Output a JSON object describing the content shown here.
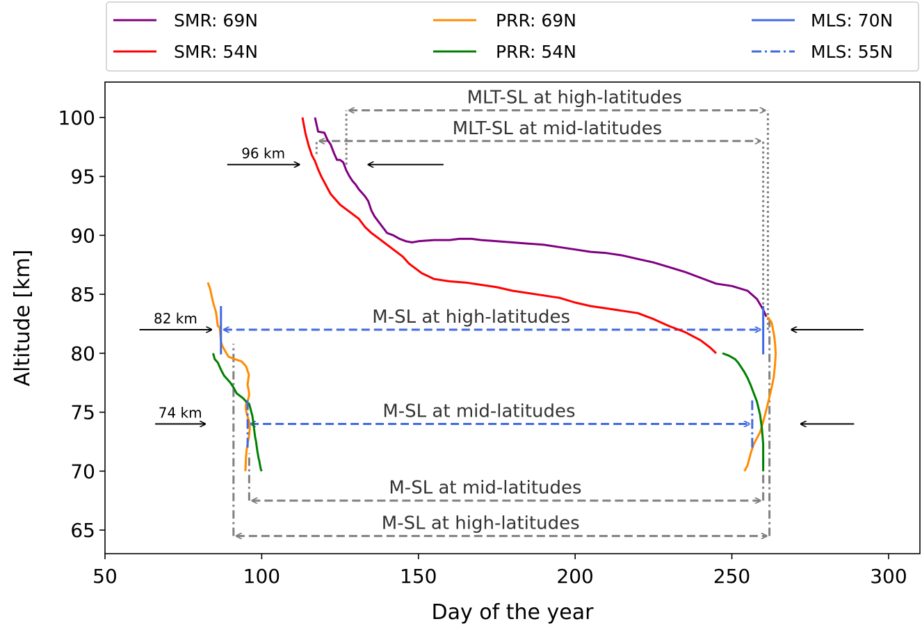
{
  "chart_data": {
    "type": "line",
    "title": "",
    "xlabel": "Day of the year",
    "ylabel": "Altitude [km]",
    "xlim": [
      50,
      310
    ],
    "ylim": [
      63,
      103
    ],
    "xticks": [
      50,
      100,
      150,
      200,
      250,
      300
    ],
    "yticks": [
      65,
      70,
      75,
      80,
      85,
      90,
      95,
      100
    ],
    "grid": false,
    "legend": {
      "placement": "top, outside the axes, 3 columns",
      "ncol": 3
    },
    "series": [
      {
        "name": "SMR: 69N",
        "color": "#800080",
        "dash": "solid",
        "x": [
          117,
          118,
          120,
          121,
          122,
          123,
          124,
          125,
          126,
          127,
          128,
          129,
          130,
          131,
          132,
          133,
          134,
          135,
          136,
          138,
          140,
          142,
          144,
          146,
          148,
          150,
          155,
          160,
          163,
          167,
          170,
          175,
          180,
          185,
          190,
          195,
          200,
          205,
          210,
          215,
          220,
          225,
          230,
          235,
          240,
          245,
          250,
          255,
          258,
          260,
          261
        ],
        "y": [
          100,
          98.8,
          98.7,
          98.1,
          97.7,
          97,
          96.4,
          96.4,
          96.2,
          95.5,
          95,
          94.6,
          94.3,
          93.9,
          93.6,
          93.3,
          92.9,
          92.1,
          91.6,
          90.9,
          90.2,
          90,
          89.7,
          89.5,
          89.4,
          89.5,
          89.6,
          89.6,
          89.7,
          89.7,
          89.6,
          89.5,
          89.4,
          89.3,
          89.2,
          89,
          88.8,
          88.6,
          88.5,
          88.3,
          88,
          87.7,
          87.3,
          86.9,
          86.4,
          85.9,
          85.7,
          85.3,
          84.6,
          83.7,
          83.1
        ]
      },
      {
        "name": "SMR: 54N",
        "color": "#ff0000",
        "dash": "solid",
        "x": [
          113,
          113.5,
          114,
          115,
          116,
          117,
          118,
          119,
          120,
          121,
          122,
          123,
          125,
          127,
          129,
          131,
          133,
          135,
          137,
          139,
          141,
          143,
          145,
          147,
          149,
          151,
          155,
          160,
          165,
          170,
          175,
          180,
          185,
          190,
          195,
          200,
          205,
          210,
          215,
          220,
          225,
          230,
          235,
          240,
          243,
          245
        ],
        "y": [
          100,
          99.3,
          98.6,
          97.6,
          96.8,
          96.3,
          95.6,
          95,
          94.5,
          94,
          93.5,
          93.2,
          92.6,
          92.2,
          91.8,
          91.4,
          90.7,
          90.2,
          89.8,
          89.4,
          89,
          88.6,
          88.2,
          87.6,
          87.2,
          86.8,
          86.3,
          86.1,
          86,
          85.8,
          85.6,
          85.3,
          85.1,
          84.9,
          84.7,
          84.3,
          84,
          83.8,
          83.6,
          83.4,
          82.9,
          82.3,
          81.8,
          81.1,
          80.5,
          80
        ]
      },
      {
        "name": "PRR: 69N",
        "color": "#ff8c00",
        "dash": "solid",
        "x": [
          82.8,
          83.5,
          84.5,
          85.4,
          86,
          86.6,
          87,
          87.3,
          87.9,
          89.4,
          91.4,
          93.6,
          95,
          95.9,
          95.5,
          95.8,
          96,
          95.7,
          95,
          94.9,
          95.3,
          96,
          96.2,
          96,
          95.6,
          95.2,
          95,
          94.8,
          254,
          255,
          256,
          257,
          258,
          259,
          260,
          261,
          262,
          262.8,
          263.4,
          263.8,
          264,
          263.8,
          263.5,
          263.2,
          262.8,
          262.5,
          262.1,
          261.7,
          261.2
        ],
        "y": [
          86,
          85.5,
          84.3,
          83.5,
          82.3,
          82.2,
          81,
          80.7,
          80.4,
          79.7,
          79.5,
          79.3,
          78.9,
          78.2,
          77.3,
          76.9,
          76.5,
          76.1,
          75.7,
          75.3,
          74.8,
          74.2,
          73.6,
          73.1,
          72.5,
          71.8,
          71.2,
          70,
          70,
          70.5,
          71.5,
          72.3,
          72.8,
          73.3,
          74.2,
          75.2,
          76.3,
          77.2,
          78,
          79.1,
          80,
          80.8,
          81.5,
          81.9,
          82.5,
          82.7,
          82.8,
          83,
          83
        ]
      },
      {
        "name": "PRR: 54N",
        "color": "#008000",
        "dash": "solid",
        "x": [
          84.5,
          85,
          86,
          87,
          88,
          89,
          90,
          91,
          92,
          94,
          95,
          96,
          96.6,
          97,
          97.3,
          97.6,
          97.9,
          98.2,
          98.4,
          98.6,
          98.8,
          99,
          99.2,
          99.4,
          99.6,
          99.8,
          100,
          247,
          249,
          251,
          252,
          253,
          254,
          255,
          256,
          257,
          258,
          259,
          259.6,
          260,
          260
        ],
        "y": [
          80,
          79.5,
          79.2,
          78.6,
          78.1,
          77.8,
          77.5,
          77.1,
          76.6,
          76.2,
          75.9,
          75.7,
          75.1,
          74.7,
          74.2,
          73.5,
          72.9,
          72.5,
          72.1,
          71.7,
          71.4,
          71.1,
          70.9,
          70.6,
          70.3,
          70.1,
          70,
          80,
          79.8,
          79.5,
          79.2,
          78.8,
          78.4,
          77.9,
          77.3,
          76.6,
          75.9,
          74.8,
          73.6,
          72.3,
          70
        ]
      }
    ],
    "mls_markers": [
      {
        "name": "MLS: 70N",
        "color": "#4169e1",
        "dash": "solid",
        "days": [
          87,
          260
        ],
        "span": [
          79.9,
          84
        ]
      },
      {
        "name": "MLS: 55N",
        "color": "#4169e1",
        "dash": "dashdot",
        "days": [
          95.5,
          256.5
        ],
        "span": [
          72,
          76
        ]
      }
    ],
    "season_arrows": [
      {
        "label": "MLT-SL at high-latitudes",
        "color": "#808080",
        "x": [
          127,
          261.5
        ],
        "y": 100.6,
        "bars": [
          {
            "x": 127,
            "y": [
              96,
              100.6
            ]
          },
          {
            "x": 261.5,
            "y": [
              82,
              100.6
            ]
          }
        ]
      },
      {
        "label": "MLT-SL at mid-latitudes",
        "color": "#808080",
        "x": [
          117.5,
          260
        ],
        "y": 98,
        "bars": [
          {
            "x": 117.5,
            "y": [
              96.9,
              98
            ]
          },
          {
            "x": 260,
            "y": [
              82.9,
              98
            ]
          }
        ]
      },
      {
        "label": "M-SL at high-latitudes",
        "color": "#4169e1",
        "x": [
          87,
          260
        ],
        "y": 82,
        "bars": []
      },
      {
        "label": "M-SL at mid-latitudes",
        "color": "#4169e1",
        "x": [
          95.5,
          256.5
        ],
        "y": 74,
        "bars": []
      },
      {
        "label": "M-SL at mid-latitudes",
        "color": "#808080",
        "x": [
          96,
          260
        ],
        "y": 67.5,
        "bars": [
          {
            "x": 96,
            "y": [
              67.5,
              71.5
            ]
          },
          {
            "x": 260,
            "y": [
              67.5,
              71.5
            ]
          }
        ]
      },
      {
        "label": "M-SL at high-latitudes",
        "color": "#808080",
        "x": [
          91,
          262
        ],
        "y": 64.5,
        "bars": [
          {
            "x": 91,
            "y": [
              64.5,
              80.8
            ]
          },
          {
            "x": 262,
            "y": [
              64.5,
              83.2
            ]
          }
        ]
      }
    ],
    "pointer_arrows": [
      {
        "label": "96 km",
        "from": [
          89,
          96
        ],
        "to": [
          112,
          96
        ]
      },
      {
        "label": "",
        "from": [
          158,
          96
        ],
        "to": [
          134,
          96
        ]
      },
      {
        "label": "82 km",
        "from": [
          61,
          82
        ],
        "to": [
          84,
          82
        ]
      },
      {
        "label": "",
        "from": [
          292,
          82
        ],
        "to": [
          269,
          82
        ]
      },
      {
        "label": "74 km",
        "from": [
          66,
          74
        ],
        "to": [
          82,
          74
        ]
      },
      {
        "label": "",
        "from": [
          289,
          74
        ],
        "to": [
          272,
          74
        ]
      }
    ]
  }
}
